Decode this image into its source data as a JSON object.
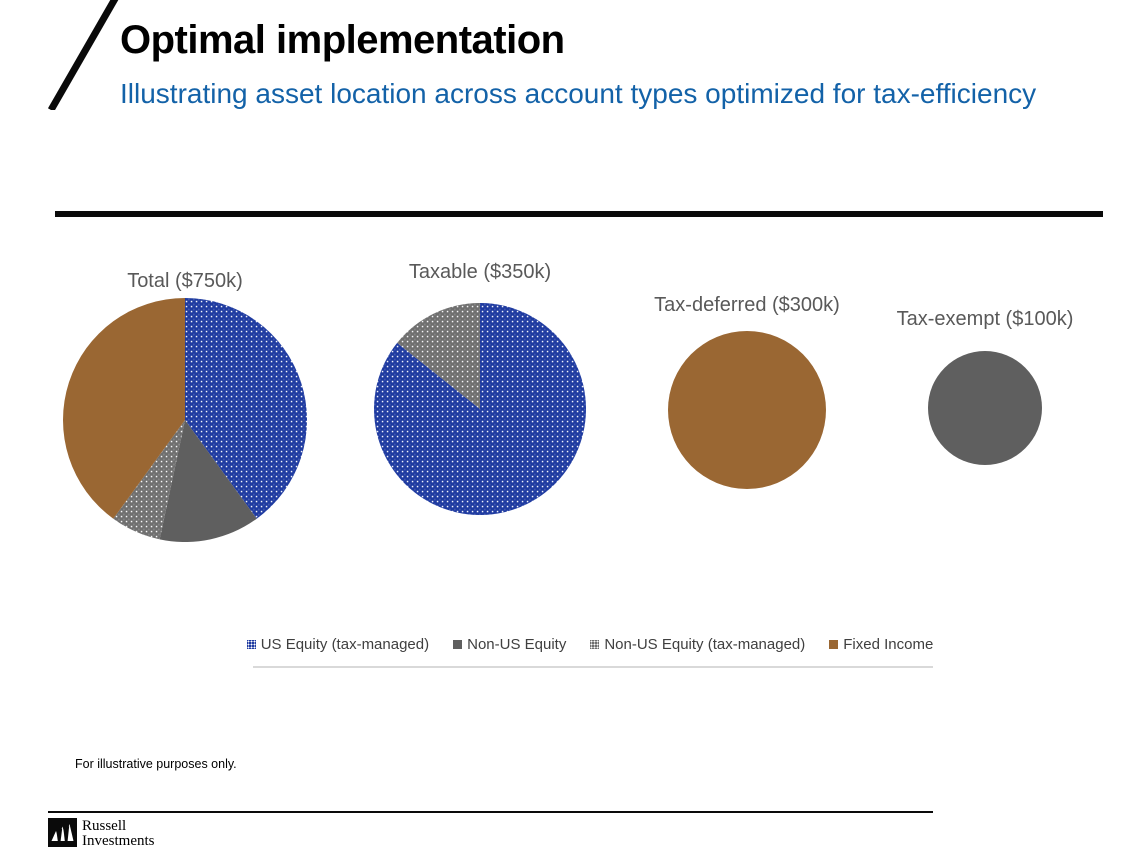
{
  "header": {
    "title": "Optimal implementation",
    "subtitle": "Illustrating asset location across account types optimized for tax-efficiency"
  },
  "colors": {
    "subtitle_blue": "#1362A8",
    "divider_black": "#0A0A0A",
    "chart_title_gray": "#595959",
    "legend_text_gray": "#3F3F3F",
    "us_equity_blue": "#1E3AA0",
    "non_us_equity_gray": "#5F5F5F",
    "non_us_equity_tm_gray": "#6F6F6F",
    "fixed_income_brown": "#9A6733"
  },
  "chart_data": {
    "type": "pie",
    "unit": "USD thousands",
    "legend_position": "bottom",
    "legend": [
      {
        "key": "us_equity_tax_managed",
        "label": "US Equity (tax-managed)",
        "color": "#1E3AA0",
        "pattern": "white-dots"
      },
      {
        "key": "non_us_equity",
        "label": "Non-US Equity",
        "color": "#5F5F5F",
        "pattern": "solid"
      },
      {
        "key": "non_us_equity_tax_managed",
        "label": "Non-US Equity (tax-managed)",
        "color": "#6F6F6F",
        "pattern": "white-dots"
      },
      {
        "key": "fixed_income",
        "label": "Fixed Income",
        "color": "#9A6733",
        "pattern": "solid"
      }
    ],
    "pies": [
      {
        "title": "Total ($750k)",
        "total_k": 750,
        "radius_px": 122,
        "slices": [
          {
            "key": "us_equity_tax_managed",
            "value_k": 300
          },
          {
            "key": "non_us_equity",
            "value_k": 100
          },
          {
            "key": "non_us_equity_tax_managed",
            "value_k": 50
          },
          {
            "key": "fixed_income",
            "value_k": 300
          }
        ]
      },
      {
        "title": "Taxable ($350k)",
        "total_k": 350,
        "radius_px": 106,
        "slices": [
          {
            "key": "us_equity_tax_managed",
            "value_k": 300
          },
          {
            "key": "non_us_equity_tax_managed",
            "value_k": 50
          }
        ]
      },
      {
        "title": "Tax-deferred ($300k)",
        "total_k": 300,
        "radius_px": 79,
        "slices": [
          {
            "key": "fixed_income",
            "value_k": 300
          }
        ]
      },
      {
        "title": "Tax-exempt ($100k)",
        "total_k": 100,
        "radius_px": 57,
        "slices": [
          {
            "key": "non_us_equity",
            "value_k": 100
          }
        ]
      }
    ]
  },
  "footer": {
    "note": "For illustrative purposes only."
  },
  "logo": {
    "line1": "Russell",
    "line2": "Investments",
    "mark": "mountains-icon"
  }
}
